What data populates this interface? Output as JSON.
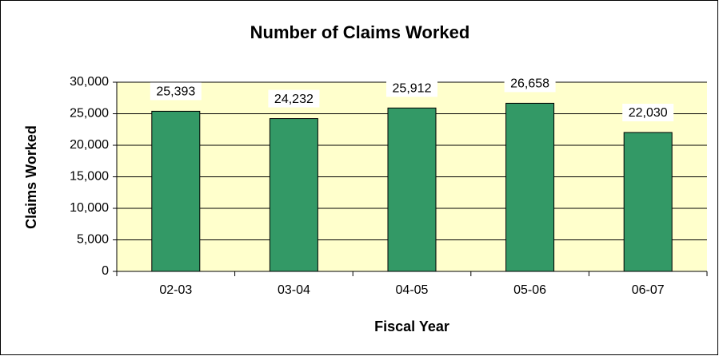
{
  "chart_data": {
    "type": "bar",
    "title": "Number of Claims Worked",
    "x_label": "Fiscal Year",
    "y_label": "Claims Worked",
    "categories": [
      "02-03",
      "03-04",
      "04-05",
      "05-06",
      "06-07"
    ],
    "values": [
      25393,
      24232,
      25912,
      26658,
      22030
    ],
    "value_labels": [
      "25,393",
      "24,232",
      "25,912",
      "26,658",
      "22,030"
    ],
    "color": "#339966",
    "plot_background": "#ffffcc",
    "ylim": [
      0,
      30000
    ],
    "yticks": [
      0,
      {
        "value": 5000,
        "label": "5,000"
      },
      {
        "value": 10000,
        "label": "10,000"
      },
      {
        "value": 15000,
        "label": "15,000"
      },
      {
        "value": 20000,
        "label": "20,000"
      },
      {
        "value": 25000,
        "label": "25,000"
      },
      {
        "value": 30000,
        "label": "30,000"
      }
    ],
    "grid": true
  }
}
